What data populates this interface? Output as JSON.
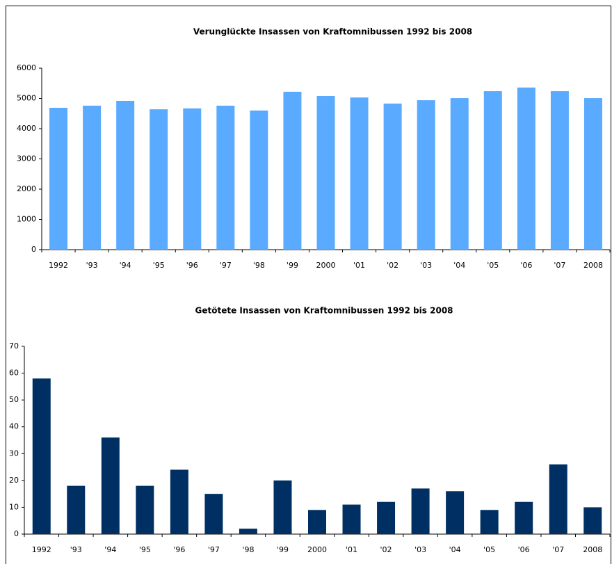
{
  "chart_data": [
    {
      "type": "bar",
      "title": "Verunglückte Insassen von Kraftomnibussen 1992 bis 2008",
      "categories": [
        "1992",
        "'93",
        "'94",
        "'95",
        "'96",
        "'97",
        "'98",
        "'99",
        "2000",
        "'01",
        "'02",
        "'03",
        "'04",
        "'05",
        "'06",
        "'07",
        "2008"
      ],
      "values": [
        4690,
        4760,
        4920,
        4640,
        4670,
        4760,
        4600,
        5220,
        5080,
        5030,
        4830,
        4940,
        5010,
        5240,
        5360,
        5240,
        5010
      ],
      "color": "#5aabff",
      "ylim": [
        0,
        6000
      ],
      "yticks": [
        0,
        1000,
        2000,
        3000,
        4000,
        5000,
        6000
      ],
      "grid": false
    },
    {
      "type": "bar",
      "title": "Getötete Insassen von Kraftomnibussen 1992 bis 2008",
      "categories": [
        "1992",
        "'93",
        "'94",
        "'95",
        "'96",
        "'97",
        "'98",
        "'99",
        "2000",
        "'01",
        "'02",
        "'03",
        "'04",
        "'05",
        "'06",
        "'07",
        "2008"
      ],
      "values": [
        58,
        18,
        36,
        18,
        24,
        15,
        2,
        20,
        9,
        11,
        12,
        17,
        16,
        9,
        12,
        26,
        10
      ],
      "color": "#003063",
      "ylim": [
        0,
        70
      ],
      "yticks": [
        0,
        10,
        20,
        30,
        40,
        50,
        60,
        70
      ],
      "grid": false
    }
  ]
}
